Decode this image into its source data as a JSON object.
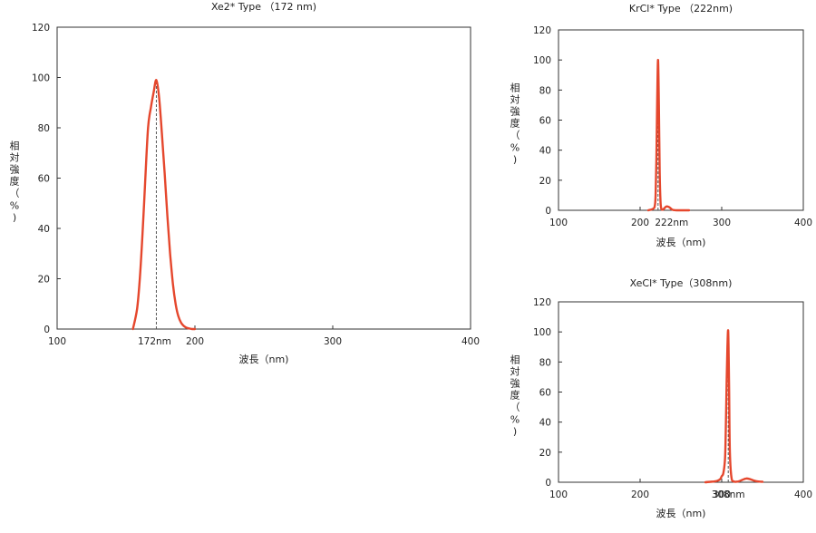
{
  "colors": {
    "curve": "#e5472d",
    "axis": "#333333",
    "dash": "#555555"
  },
  "chart_data": [
    {
      "type": "line",
      "title": "Xe2* Type （172 nm)",
      "xlabel": "波長（nm)",
      "ylabel": "相対強度（%)",
      "xlim": [
        100,
        400
      ],
      "ylim": [
        0,
        120
      ],
      "xticks": [
        "100",
        "200",
        "300",
        "400"
      ],
      "yticks": [
        "0",
        "20",
        "40",
        "60",
        "80",
        "100",
        "120"
      ],
      "peak_label": "172nm",
      "peak_x": 172,
      "grid": false,
      "series": [
        {
          "x": [
            155,
            158,
            160,
            162,
            164,
            166,
            168,
            170,
            172,
            174,
            176,
            178,
            180,
            182,
            184,
            186,
            188,
            190,
            192,
            194,
            196,
            198,
            200
          ],
          "y": [
            0,
            8,
            20,
            38,
            60,
            80,
            88,
            94,
            99,
            92,
            78,
            62,
            45,
            30,
            18,
            10,
            5,
            2.5,
            1.2,
            0.5,
            0.2,
            0,
            0
          ]
        }
      ]
    },
    {
      "type": "line",
      "title": "KrCl* Type （222nm)",
      "xlabel": "波長（nm)",
      "ylabel": "相対強度（%)",
      "xlim": [
        100,
        400
      ],
      "ylim": [
        0,
        120
      ],
      "xticks": [
        "100",
        "200",
        "300",
        "400"
      ],
      "yticks": [
        "0",
        "20",
        "40",
        "60",
        "80",
        "100",
        "120"
      ],
      "peak_label": "222nm",
      "peak_x": 222,
      "grid": false,
      "series": [
        {
          "x": [
            210,
            216,
            218,
            219,
            220,
            221,
            222,
            223,
            224,
            225,
            226,
            228,
            230,
            232,
            234,
            236,
            238,
            240,
            245,
            260
          ],
          "y": [
            0,
            1,
            3,
            10,
            35,
            75,
            100,
            70,
            25,
            6,
            1,
            0.5,
            1.5,
            2.5,
            2.5,
            2,
            1,
            0.3,
            0,
            0
          ]
        }
      ]
    },
    {
      "type": "line",
      "title": "XeCl* Type（308nm)",
      "xlabel": "波長（nm)",
      "ylabel": "相対強度（%)",
      "xlim": [
        100,
        400
      ],
      "ylim": [
        0,
        120
      ],
      "xticks": [
        "100",
        "200",
        "300",
        "400"
      ],
      "yticks": [
        "0",
        "20",
        "40",
        "60",
        "80",
        "100",
        "120"
      ],
      "peak_label": "308nm",
      "peak_x": 308,
      "grid": false,
      "series": [
        {
          "x": [
            280,
            290,
            295,
            298,
            300,
            302,
            304,
            305,
            306,
            307,
            308,
            309,
            310,
            312,
            315,
            320,
            325,
            330,
            335,
            340,
            345,
            350
          ],
          "y": [
            0,
            0.5,
            1,
            2,
            4,
            6,
            15,
            35,
            65,
            90,
            100,
            65,
            20,
            3,
            0.5,
            0.5,
            1.5,
            2.5,
            2,
            1,
            0.5,
            0.3
          ]
        }
      ]
    }
  ]
}
